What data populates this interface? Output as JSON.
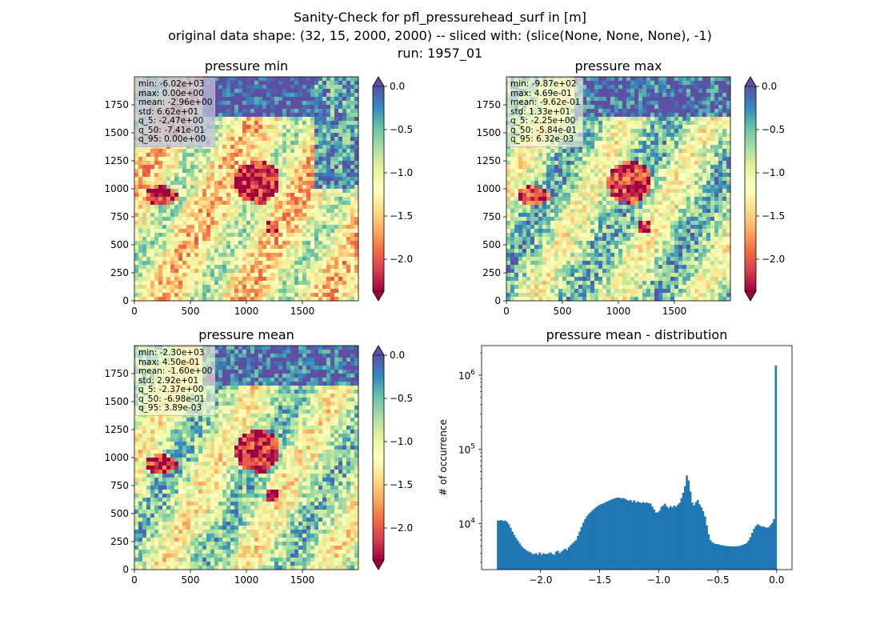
{
  "figure": {
    "title_lines": [
      "Sanity-Check for pfl_pressurehead_surf in [m]",
      "original data shape: (32, 15, 2000, 2000) -- sliced with: (slice(None, None, None), -1)",
      "run: 1957_01"
    ]
  },
  "colormap": {
    "name": "Spectral",
    "stops": [
      "#9e0142",
      "#d53e4f",
      "#f46d43",
      "#fdae61",
      "#fee08b",
      "#ffffbf",
      "#e6f598",
      "#abdda4",
      "#66c2a5",
      "#3288bd",
      "#5e4fa2"
    ]
  },
  "chart_data": [
    {
      "type": "heatmap",
      "title": "pressure min",
      "xticks": [
        "0",
        "500",
        "1000",
        "1500"
      ],
      "yticks": [
        "0",
        "250",
        "500",
        "750",
        "1000",
        "1250",
        "1500",
        "1750"
      ],
      "xlim": [
        0,
        2000
      ],
      "ylim": [
        0,
        2000
      ],
      "colorbar": {
        "ticks": [
          "0.0",
          "−0.5",
          "−1.0",
          "−1.5",
          "−2.0"
        ],
        "range": [
          -2.37,
          0.0
        ],
        "extend_low": true,
        "extend_high": true
      },
      "stats": [
        "min: -6.02e+03",
        "max: 0.00e+00",
        "mean: -2.96e+00",
        "std: 6.62e+01",
        "q_5: -2.47e+00",
        "q_50: -7.41e-01",
        "q_95: 0.00e+00"
      ],
      "dominant_values": {
        "north_sea": 0.0,
        "central_uplands": -2.2,
        "lowlands": -1.2
      }
    },
    {
      "type": "heatmap",
      "title": "pressure max",
      "xticks": [
        "0",
        "500",
        "1000",
        "1500"
      ],
      "yticks": [
        "0",
        "250",
        "500",
        "750",
        "1000",
        "1250",
        "1500",
        "1750"
      ],
      "xlim": [
        0,
        2000
      ],
      "ylim": [
        0,
        2000
      ],
      "colorbar": {
        "ticks": [
          "0.0",
          "−0.5",
          "−1.0",
          "−1.5",
          "−2.0"
        ],
        "range": [
          -2.37,
          0.0
        ],
        "extend_low": true,
        "extend_high": true
      },
      "stats": [
        "min: -9.87e+02",
        "max: 4.69e-01",
        "mean: -9.62e-01",
        "std: 1.33e+01",
        "q_5: -2.25e+00",
        "q_50: -5.84e-01",
        "q_95: 6.32e-03"
      ],
      "dominant_values": {
        "north_sea": -0.1,
        "central_uplands": -2.1,
        "lowlands": -0.8
      }
    },
    {
      "type": "heatmap",
      "title": "pressure mean",
      "xticks": [
        "0",
        "500",
        "1000",
        "1500"
      ],
      "yticks": [
        "0",
        "250",
        "500",
        "750",
        "1000",
        "1250",
        "1500",
        "1750"
      ],
      "xlim": [
        0,
        2000
      ],
      "ylim": [
        0,
        2000
      ],
      "colorbar": {
        "ticks": [
          "0.0",
          "−0.5",
          "−1.0",
          "−1.5",
          "−2.0"
        ],
        "range": [
          -2.37,
          0.0
        ],
        "extend_low": true,
        "extend_high": true
      },
      "stats": [
        "min: -2.30e+03",
        "max: 4.50e-01",
        "mean: -1.60e+00",
        "std: 2.92e+01",
        "q_5: -2.37e+00",
        "q_50: -6.98e-01",
        "q_95: 3.89e-03"
      ],
      "dominant_values": {
        "north_sea": -0.1,
        "central_uplands": -2.2,
        "lowlands": -0.9
      }
    },
    {
      "type": "bar",
      "title": "pressure mean - distribution",
      "xlabel": "",
      "ylabel": "# of occurrence",
      "yscale": "log",
      "xlim": [
        -2.5,
        0.13
      ],
      "ylim": [
        2400,
        2500000
      ],
      "xticks": [
        "−2.0",
        "−1.5",
        "−1.0",
        "−0.5",
        "0.0"
      ],
      "xtick_values": [
        -2.0,
        -1.5,
        -1.0,
        -0.5,
        0.0
      ],
      "yticks": [
        "10^4",
        "10^5",
        "10^6"
      ],
      "ytick_values": [
        10000,
        100000,
        1000000
      ],
      "bar_color": "#1f77b4",
      "bins": {
        "start": -2.37,
        "end": 0.0
      },
      "counts": [
        11000,
        11000,
        11200,
        10800,
        11000,
        10500,
        9800,
        8800,
        7800,
        7000,
        6400,
        5900,
        5400,
        5000,
        4700,
        4500,
        4300,
        4200,
        4100,
        3900,
        3900,
        4000,
        3800,
        4100,
        3800,
        4000,
        3900,
        3900,
        4000,
        4100,
        3900,
        3800,
        4200,
        4300,
        4000,
        4200,
        4400,
        4600,
        4400,
        4800,
        5100,
        5400,
        5700,
        6000,
        6800,
        7800,
        9000,
        10300,
        11500,
        12600,
        13500,
        14200,
        15000,
        15800,
        16600,
        17300,
        17900,
        18400,
        18700,
        19200,
        19800,
        20200,
        20800,
        21300,
        21800,
        22200,
        22500,
        22300,
        21700,
        22100,
        21600,
        20800,
        20300,
        20800,
        19600,
        20600,
        19200,
        19900,
        19300,
        19000,
        19500,
        19000,
        19300,
        18800,
        18600,
        17000,
        15500,
        14000,
        14200,
        14900,
        16800,
        17600,
        18500,
        17000,
        16200,
        17300,
        16500,
        17500,
        16900,
        17900,
        19000,
        22000,
        26000,
        32000,
        44500,
        38000,
        27000,
        19200,
        17500,
        19500,
        20800,
        18200,
        16600,
        14800,
        12500,
        9500,
        7200,
        6000,
        5600,
        5400,
        5300,
        5300,
        5200,
        5100,
        5100,
        5000,
        5000,
        4950,
        4950,
        4950,
        4900,
        4950,
        4950,
        5000,
        5100,
        5200,
        5300,
        5500,
        5900,
        6600,
        7500,
        8500,
        9300,
        9800,
        9500,
        9100,
        9200,
        9000,
        8800,
        8900,
        9500,
        10200,
        11500,
        1350000
      ]
    }
  ]
}
